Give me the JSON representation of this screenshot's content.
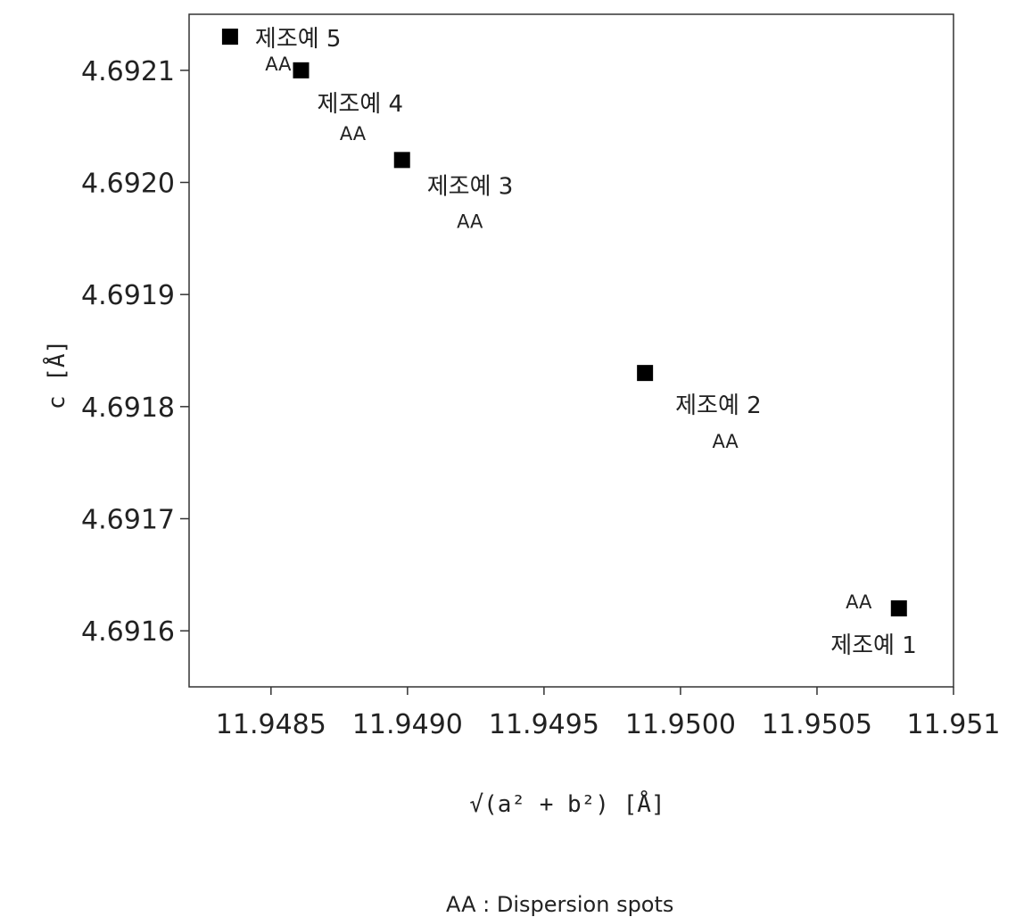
{
  "chart_data": {
    "type": "scatter",
    "xlabel": "√(a² + b²)  [Å]",
    "ylabel": "c [Å]",
    "xlim": [
      11.9482,
      11.951
    ],
    "ylim": [
      4.69155,
      4.69215
    ],
    "x_ticks": [
      11.9485,
      11.949,
      11.9495,
      11.95,
      11.9505,
      11.951
    ],
    "x_tick_labels": [
      "11.9485",
      "11.9490",
      "11.9495",
      "11.9500",
      "11.9505",
      "11.951"
    ],
    "y_ticks": [
      4.6916,
      4.6917,
      4.6918,
      4.6919,
      4.692,
      4.6921
    ],
    "y_tick_labels": [
      "4.6916",
      "4.6917",
      "4.6918",
      "4.6919",
      "4.6920",
      "4.6921"
    ],
    "points": [
      {
        "x": 11.94835,
        "y": 4.69213,
        "label": "제조예 5",
        "sub": "AA"
      },
      {
        "x": 11.94861,
        "y": 4.6921,
        "label": "제조예 4",
        "sub": "AA"
      },
      {
        "x": 11.94898,
        "y": 4.69202,
        "label": "제조예 3",
        "sub": "AA"
      },
      {
        "x": 11.94987,
        "y": 4.69183,
        "label": "제조예 2",
        "sub": "AA"
      },
      {
        "x": 11.9508,
        "y": 4.69162,
        "label": "제조예 1",
        "sub": "AA"
      }
    ],
    "grid": false,
    "marker": "square",
    "marker_color": "#000000"
  },
  "footnote": "AA : Dispersion spots"
}
